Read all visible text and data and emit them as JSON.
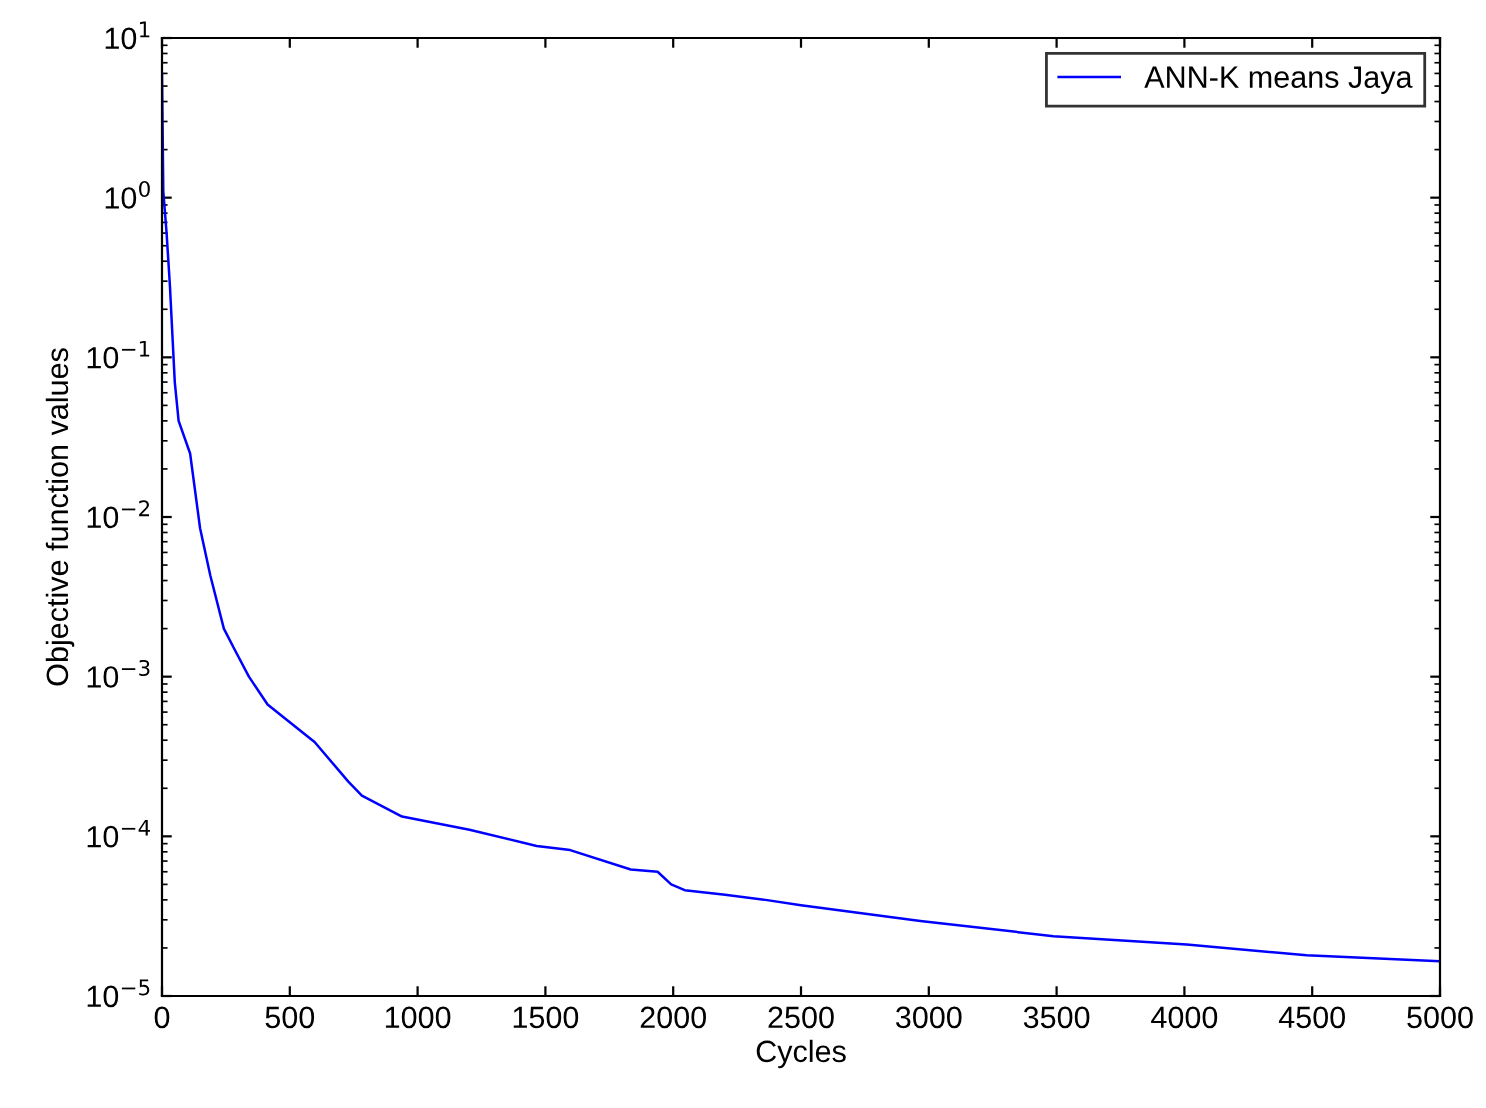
{
  "chart_data": {
    "type": "line",
    "xlabel": "Cycles",
    "ylabel": "Objective function values",
    "log": "y",
    "legend": "top right",
    "grid": false,
    "xlim": [
      0,
      5000
    ],
    "xticks": [
      0,
      500,
      1000,
      1500,
      2000,
      2500,
      3000,
      3500,
      4000,
      4500,
      5000
    ],
    "ylim": [
      1e-05,
      10
    ],
    "yticks": [
      {
        "value": 1e-05,
        "label": "10$^{−5}$"
      },
      {
        "value": 0.0001,
        "label": "10$^{−4}$"
      },
      {
        "value": 0.001,
        "label": "10$^{−3}$"
      },
      {
        "value": 0.01,
        "label": "10$^{−2}$"
      },
      {
        "value": 0.1,
        "label": "10$^{−1}$"
      },
      {
        "value": 1,
        "label": "10$^{0}$"
      },
      {
        "value": 10,
        "label": "10$^{1}$"
      }
    ],
    "series": [
      {
        "name": "ANN-K means Jaya",
        "color": "#0000ff",
        "x": [
          0,
          5,
          18,
          31,
          50,
          65,
          110,
          149,
          189,
          242,
          282,
          340,
          413,
          571,
          597,
          729,
          782,
          939,
          1203,
          1466,
          1597,
          1834,
          1939,
          1992,
          2045,
          2203,
          2361,
          2500,
          2967,
          3488,
          4009,
          4478,
          5000
        ],
        "values": [
          6,
          1.1,
          0.6,
          0.28,
          0.07,
          0.04,
          0.025,
          0.0085,
          0.0043,
          0.002,
          0.0015,
          0.001,
          0.00067,
          0.00042,
          0.00039,
          0.00022,
          0.00018,
          0.000133,
          0.00011,
          8.7e-05,
          8.2e-05,
          6.2e-05,
          6e-05,
          5e-05,
          4.6e-05,
          4.3e-05,
          4e-05,
          3.7e-05,
          2.95e-05,
          2.37e-05,
          2.1e-05,
          1.8e-05,
          1.65e-05
        ]
      }
    ]
  }
}
